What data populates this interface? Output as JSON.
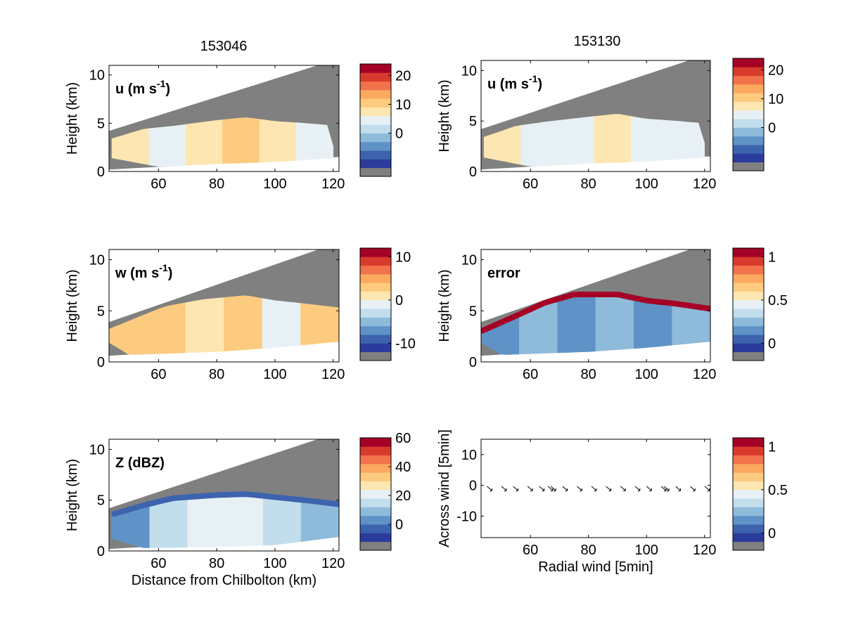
{
  "figure": {
    "columns": [
      "153046",
      "153130"
    ]
  },
  "palette": [
    "#808080",
    "#2b3b9c",
    "#3d63ae",
    "#5f93c7",
    "#8fbbdb",
    "#c2ddec",
    "#e7f1f5",
    "#fde6b1",
    "#fdcb80",
    "#fba95f",
    "#f1724b",
    "#d83b2e",
    "#a50026"
  ],
  "chart_data": [
    {
      "type": "heatmap",
      "panel": "u-153046",
      "column": "153046",
      "label_main": "u (m s",
      "label_sup": "-1",
      "label_end": ")",
      "ylabel": "Height (km)",
      "xlabel": "",
      "xlim": [
        43,
        122
      ],
      "ylim": [
        0,
        11
      ],
      "xticks": [
        "60",
        "80",
        "100",
        "120"
      ],
      "yticks": [
        "0",
        "5",
        "10"
      ],
      "beam": {
        "bottom": [
          [
            43,
            0.2
          ],
          [
            122,
            1.5
          ]
        ],
        "top": [
          [
            43,
            4.2
          ],
          [
            122,
            11.7
          ]
        ]
      },
      "echo": {
        "top": [
          [
            44,
            3.4
          ],
          [
            55,
            4.4
          ],
          [
            65,
            4.7
          ],
          [
            80,
            5.3
          ],
          [
            90,
            5.6
          ],
          [
            100,
            5.2
          ],
          [
            110,
            5.0
          ],
          [
            118,
            4.8
          ],
          [
            120,
            2.6
          ]
        ],
        "bottom": [
          [
            44,
            1.4
          ],
          [
            60,
            0.5
          ],
          [
            80,
            0.8
          ],
          [
            100,
            1.0
          ],
          [
            120,
            1.4
          ]
        ]
      },
      "fill_levels": [
        7,
        6,
        7,
        8,
        7,
        6
      ],
      "colorbar": {
        "ticks": [
          "20",
          "10",
          "0"
        ],
        "levels": 12,
        "range": [
          -12,
          24
        ]
      }
    },
    {
      "type": "heatmap",
      "panel": "u-153130",
      "column": "153130",
      "label_main": "u (m s",
      "label_sup": "-1",
      "label_end": ")",
      "ylabel": "Height (km)",
      "xlabel": "",
      "xlim": [
        43,
        122
      ],
      "ylim": [
        0,
        11
      ],
      "xticks": [
        "60",
        "80",
        "100",
        "120"
      ],
      "yticks": [
        "0",
        "5",
        "10"
      ],
      "beam": {
        "bottom": [
          [
            43,
            0.2
          ],
          [
            122,
            1.5
          ]
        ],
        "top": [
          [
            43,
            4.2
          ],
          [
            122,
            11.7
          ]
        ]
      },
      "echo": {
        "top": [
          [
            44,
            3.4
          ],
          [
            55,
            4.5
          ],
          [
            65,
            4.9
          ],
          [
            80,
            5.4
          ],
          [
            90,
            5.7
          ],
          [
            100,
            5.2
          ],
          [
            110,
            5.0
          ],
          [
            118,
            4.8
          ],
          [
            120,
            2.8
          ]
        ],
        "bottom": [
          [
            44,
            1.4
          ],
          [
            60,
            0.5
          ],
          [
            80,
            0.8
          ],
          [
            100,
            1.0
          ],
          [
            120,
            1.4
          ]
        ]
      },
      "fill_levels": [
        7,
        6,
        6,
        7,
        6,
        6
      ],
      "colorbar": {
        "ticks": [
          "20",
          "10",
          "0"
        ],
        "levels": 12,
        "range": [
          -12,
          24
        ]
      }
    },
    {
      "type": "heatmap",
      "panel": "w-153046",
      "column": "153046",
      "label_main": "w (m s",
      "label_sup": "-1",
      "label_end": ")",
      "ylabel": "Height (km)",
      "xlabel": "",
      "xlim": [
        43,
        122
      ],
      "ylim": [
        0,
        11
      ],
      "xticks": [
        "60",
        "80",
        "100",
        "120"
      ],
      "yticks": [
        "0",
        "5",
        "10"
      ],
      "beam": {
        "bottom": [
          [
            43,
            0.6
          ],
          [
            122,
            2.0
          ]
        ],
        "top": [
          [
            43,
            3.9
          ],
          [
            122,
            11.7
          ]
        ]
      },
      "echo": {
        "top": [
          [
            43,
            3.2
          ],
          [
            55,
            4.6
          ],
          [
            62,
            5.4
          ],
          [
            75,
            6.1
          ],
          [
            90,
            6.5
          ],
          [
            100,
            6.0
          ],
          [
            110,
            5.7
          ],
          [
            122,
            5.3
          ]
        ],
        "bottom": [
          [
            43,
            1.9
          ],
          [
            50,
            0.7
          ],
          [
            80,
            1.0
          ],
          [
            100,
            1.4
          ],
          [
            122,
            2.0
          ]
        ]
      },
      "fill_levels": [
        8,
        8,
        7,
        8,
        6,
        8
      ],
      "colorbar": {
        "ticks": [
          "10",
          "0",
          "-10"
        ],
        "levels": 12,
        "range": [
          -12,
          12
        ]
      }
    },
    {
      "type": "heatmap",
      "panel": "error-153130",
      "column": "153130",
      "label_main": "error",
      "label_sup": "",
      "label_end": "",
      "ylabel": "Height (km)",
      "xlabel": "",
      "xlim": [
        43,
        122
      ],
      "ylim": [
        0,
        11
      ],
      "xticks": [
        "60",
        "80",
        "100",
        "120"
      ],
      "yticks": [
        "0",
        "5",
        "10"
      ],
      "beam": {
        "bottom": [
          [
            43,
            0.6
          ],
          [
            122,
            2.0
          ]
        ],
        "top": [
          [
            43,
            3.9
          ],
          [
            122,
            11.7
          ]
        ]
      },
      "echo": {
        "top": [
          [
            43,
            3.0
          ],
          [
            55,
            4.5
          ],
          [
            65,
            5.8
          ],
          [
            75,
            6.6
          ],
          [
            90,
            6.6
          ],
          [
            100,
            6.0
          ],
          [
            110,
            5.7
          ],
          [
            122,
            5.2
          ]
        ],
        "bottom": [
          [
            43,
            1.9
          ],
          [
            50,
            0.7
          ],
          [
            80,
            1.0
          ],
          [
            100,
            1.4
          ],
          [
            122,
            2.0
          ]
        ]
      },
      "fill_levels": [
        3,
        4,
        3,
        4,
        3,
        4
      ],
      "edge_level": 12,
      "colorbar": {
        "ticks": [
          "1",
          "0.5",
          "0"
        ],
        "levels": 12,
        "range": [
          -0.1,
          1.1
        ]
      }
    },
    {
      "type": "heatmap",
      "panel": "Z-153046",
      "column": "153046",
      "label_main": "Z (dBZ)",
      "label_sup": "",
      "label_end": "",
      "ylabel": "Height (km)",
      "xlabel": "Distance from Chilbolton (km)",
      "xlim": [
        43,
        122
      ],
      "ylim": [
        0,
        11
      ],
      "xticks": [
        "60",
        "80",
        "100",
        "120"
      ],
      "yticks": [
        "0",
        "5",
        "10"
      ],
      "beam": {
        "bottom": [
          [
            43,
            0.2
          ],
          [
            122,
            1.5
          ]
        ],
        "top": [
          [
            43,
            4.2
          ],
          [
            122,
            11.7
          ]
        ]
      },
      "echo": {
        "top": [
          [
            44,
            3.6
          ],
          [
            55,
            4.5
          ],
          [
            65,
            5.2
          ],
          [
            80,
            5.5
          ],
          [
            90,
            5.6
          ],
          [
            100,
            5.3
          ],
          [
            110,
            5.0
          ],
          [
            122,
            4.6
          ]
        ],
        "bottom": [
          [
            44,
            1.2
          ],
          [
            55,
            0.3
          ],
          [
            80,
            0.4
          ],
          [
            100,
            0.6
          ],
          [
            122,
            1.4
          ]
        ]
      },
      "fill_levels": [
        3,
        5,
        6,
        6,
        5,
        4
      ],
      "edge_level": 2,
      "colorbar": {
        "ticks": [
          "60",
          "40",
          "20",
          "0"
        ],
        "levels": 12,
        "range": [
          -12,
          60
        ]
      }
    },
    {
      "type": "scatter",
      "panel": "vectors",
      "column": "153130",
      "ylabel": "Across wind [5min]",
      "xlabel": "Radial wind [5min]",
      "xlim": [
        43,
        122
      ],
      "ylim": [
        -17,
        15
      ],
      "xticks": [
        "60",
        "80",
        "100",
        "120"
      ],
      "yticks": [
        "-10",
        "0",
        "10"
      ],
      "arrows": {
        "x": [
          46,
          51,
          55,
          60,
          64,
          67,
          68,
          72,
          77,
          82,
          87,
          92,
          97,
          101,
          106,
          107,
          111,
          116,
          121
        ],
        "y": [
          -1,
          -1,
          -1,
          -1,
          -1,
          -1,
          -1,
          -1,
          -1,
          -1,
          -1,
          -1,
          -1,
          -1,
          -1,
          -1,
          -1,
          -1,
          -1
        ]
      },
      "colorbar": {
        "ticks": [
          "1",
          "0.5",
          "0"
        ],
        "levels": 12,
        "range": [
          -0.1,
          1.1
        ]
      }
    }
  ]
}
